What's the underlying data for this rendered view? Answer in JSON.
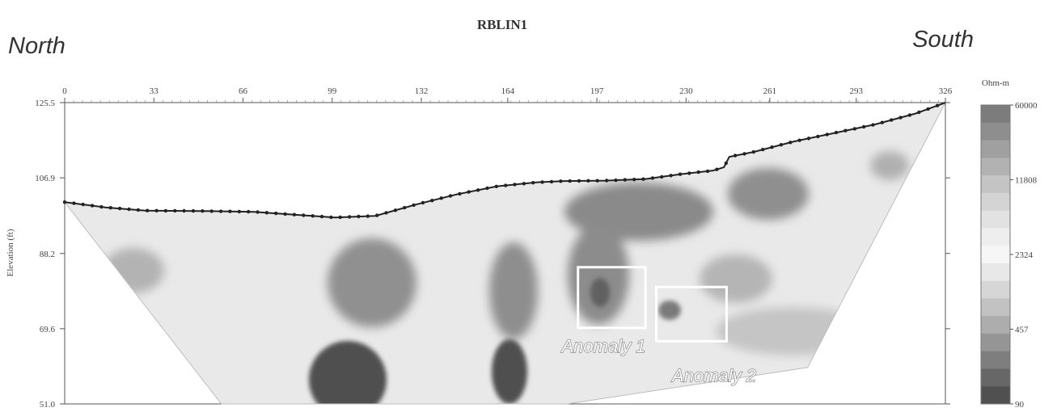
{
  "chart_data": {
    "type": "heatmap",
    "title": "RBLIN1",
    "left_label": "North",
    "right_label": "South",
    "ylabel": "Elevation (ft)",
    "x_ticks": [
      "0",
      "33",
      "66",
      "99",
      "132",
      "164",
      "197",
      "230",
      "261",
      "293",
      "326"
    ],
    "x_tick_values": [
      0,
      33,
      66,
      99,
      132,
      164,
      197,
      230,
      261,
      293,
      326
    ],
    "y_ticks": [
      "125.5",
      "106.9",
      "88.2",
      "69.6",
      "51.0"
    ],
    "y_tick_values": [
      125.5,
      106.9,
      88.2,
      69.6,
      51.0
    ],
    "xlim": [
      0,
      326
    ],
    "ylim": [
      51.0,
      125.5
    ],
    "colorbar": {
      "unit": "Ohm-m",
      "labels": [
        "60000",
        "11808",
        "2324",
        "457",
        "90"
      ],
      "colors": [
        "#7c7c7c",
        "#8e8e8e",
        "#a0a0a0",
        "#b2b2b2",
        "#c4c4c4",
        "#d4d4d4",
        "#e2e2e2",
        "#eeeeee",
        "#f6f6f6",
        "#e8e8e8",
        "#d6d6d6",
        "#c2c2c2",
        "#adadad",
        "#959595",
        "#7e7e7e",
        "#676767",
        "#505050"
      ]
    },
    "surface_profile": [
      [
        0,
        100.9
      ],
      [
        15,
        99.6
      ],
      [
        30,
        98.8
      ],
      [
        50,
        98.7
      ],
      [
        70,
        98.5
      ],
      [
        85,
        97.8
      ],
      [
        100,
        97.1
      ],
      [
        115,
        97.5
      ],
      [
        130,
        100.3
      ],
      [
        145,
        102.8
      ],
      [
        160,
        104.8
      ],
      [
        175,
        105.8
      ],
      [
        185,
        106.1
      ],
      [
        200,
        106.2
      ],
      [
        215,
        106.6
      ],
      [
        228,
        107.8
      ],
      [
        240,
        108.7
      ],
      [
        244,
        109.5
      ],
      [
        246,
        112.1
      ],
      [
        255,
        113.3
      ],
      [
        270,
        115.9
      ],
      [
        285,
        118.0
      ],
      [
        300,
        120.1
      ],
      [
        315,
        122.8
      ],
      [
        326,
        125.5
      ]
    ],
    "annotations": [
      {
        "label": "Anomaly 1",
        "x_range": [
          190,
          215
        ],
        "elev_range": [
          69.8,
          84.8
        ]
      },
      {
        "label": "Anomaly 2",
        "x_range": [
          219,
          245
        ],
        "elev_range": [
          66.5,
          79.9
        ]
      }
    ]
  }
}
